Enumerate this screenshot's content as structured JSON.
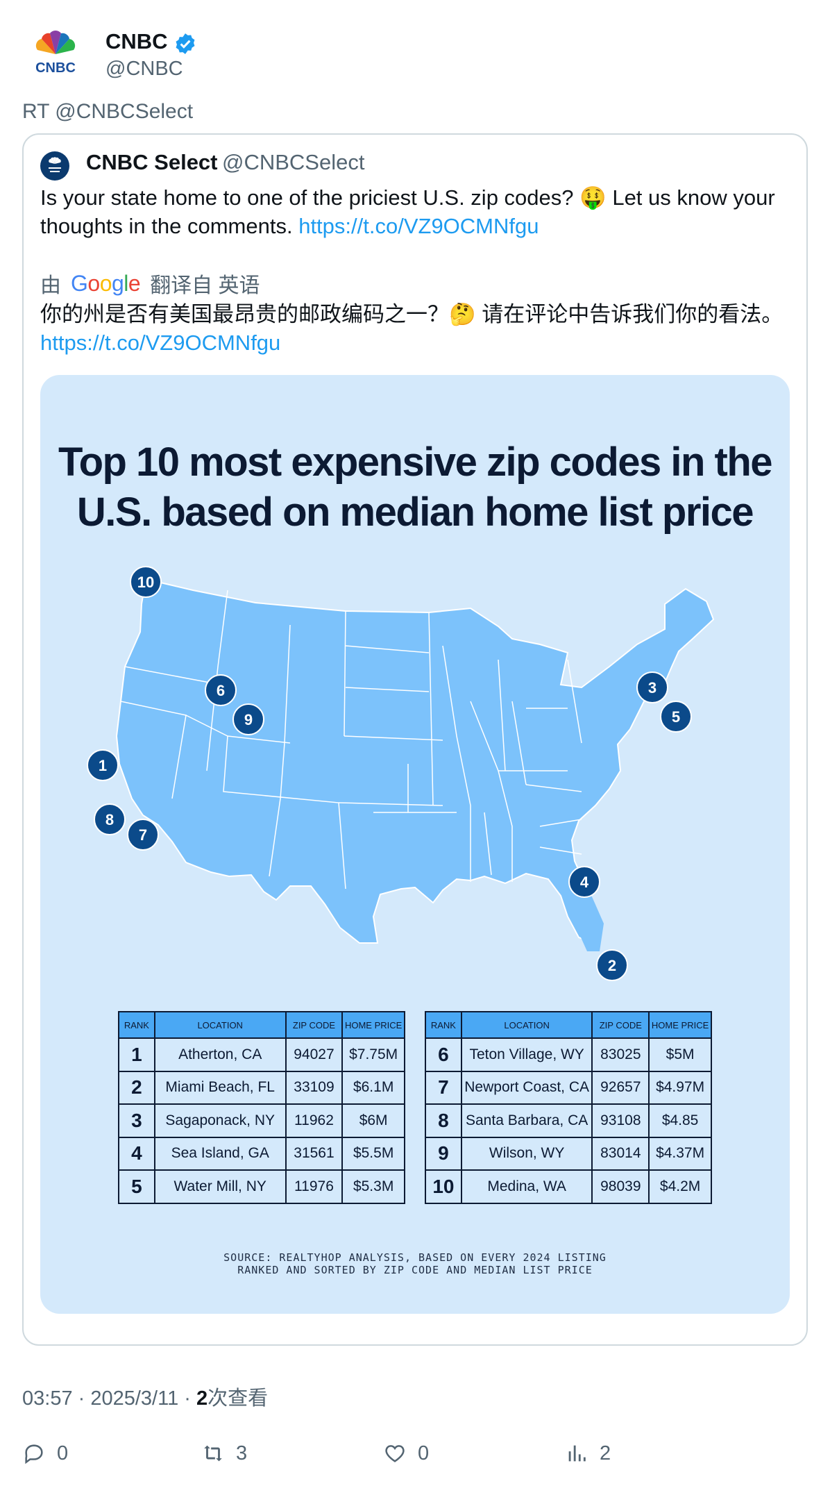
{
  "tweet": {
    "author_name": "CNBC",
    "author_handle": "@CNBC",
    "avatar_text": "CNBC",
    "retweet_label": "RT @CNBCSelect",
    "quote": {
      "name": "CNBC Select",
      "handle": "@CNBCSelect",
      "text": "Is your state home to one of the priciest U.S. zip codes? 🤑 Let us know your thoughts in the comments. ",
      "link": "https://t.co/VZ9OCMNfgu",
      "translation_prefix": "由",
      "translation_suffix": "翻译自 英语",
      "translated_text": "你的州是否有美国最昂贵的邮政编码之一？🤔 请在评论中告诉我们你的看法。",
      "translated_link": "https://t.co/VZ9OCMNfgu"
    },
    "time": "03:57 · 2025/3/11 · ",
    "views_count": "2",
    "views_label": "次查看",
    "stats": {
      "replies": "0",
      "retweets": "3",
      "likes": "0",
      "views": "2"
    }
  },
  "infographic": {
    "title_line1": "Top 10 most expensive zip codes in the",
    "title_line2": "U.S. based on median home list price",
    "headers": [
      "RANK",
      "LOCATION",
      "ZIP CODE",
      "HOME PRICE"
    ],
    "left_rows": [
      {
        "rank": "1",
        "location": "Atherton, CA",
        "zip": "94027",
        "price": "$7.75M"
      },
      {
        "rank": "2",
        "location": "Miami Beach, FL",
        "zip": "33109",
        "price": "$6.1M"
      },
      {
        "rank": "3",
        "location": "Sagaponack, NY",
        "zip": "11962",
        "price": "$6M"
      },
      {
        "rank": "4",
        "location": "Sea Island, GA",
        "zip": "31561",
        "price": "$5.5M"
      },
      {
        "rank": "5",
        "location": "Water Mill, NY",
        "zip": "11976",
        "price": "$5.3M"
      }
    ],
    "right_rows": [
      {
        "rank": "6",
        "location": "Teton Village, WY",
        "zip": "83025",
        "price": "$5M"
      },
      {
        "rank": "7",
        "location": "Newport Coast, CA",
        "zip": "92657",
        "price": "$4.97M"
      },
      {
        "rank": "8",
        "location": "Santa Barbara, CA",
        "zip": "93108",
        "price": "$4.85"
      },
      {
        "rank": "9",
        "location": "Wilson, WY",
        "zip": "83014",
        "price": "$4.37M"
      },
      {
        "rank": "10",
        "location": "Medina, WA",
        "zip": "98039",
        "price": "$4.2M"
      }
    ],
    "map_markers": [
      "1",
      "2",
      "3",
      "4",
      "5",
      "6",
      "7",
      "8",
      "9",
      "10"
    ],
    "source_line1": "SOURCE: REALTYHOP ANALYSIS, BASED ON EVERY 2024 LISTING",
    "source_line2": "RANKED AND SORTED BY ZIP CODE AND MEDIAN LIST PRICE"
  },
  "colors": {
    "map_fill": "#7cc2fb",
    "marker": "#0b4a8a",
    "background": "#d4e9fb",
    "link": "#1d9bf0"
  }
}
